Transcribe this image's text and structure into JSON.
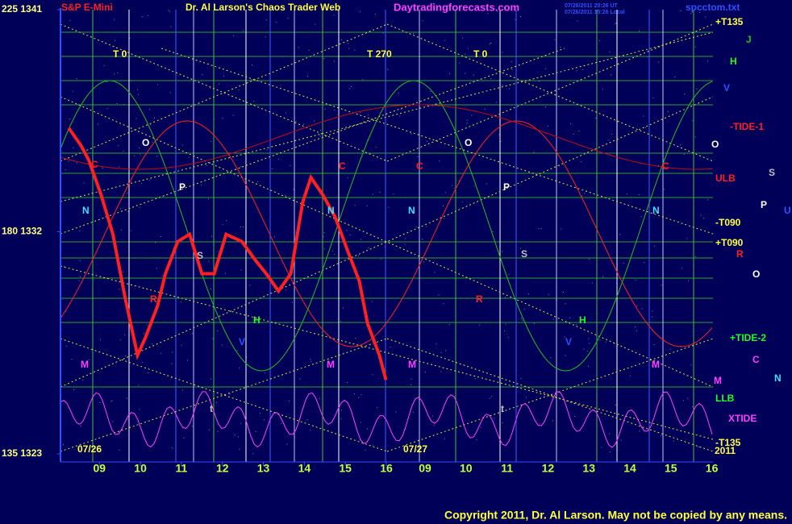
{
  "chart_data": {
    "type": "line",
    "title": "S&P E-Mini",
    "subtitle": "Dr. Al Larson's Chaos Trader Web",
    "site": "Daytradingforecasts.com",
    "stamp_ut": "07/26/2011 20:26 UT",
    "stamp_local": "07/26/2011 15:26 Local",
    "file": "spcctom.txt",
    "ylim": [
      1323,
      1341
    ],
    "yticks": [
      {
        "value": 1341,
        "label": "225 1341"
      },
      {
        "value": 1332,
        "label": "180 1332"
      },
      {
        "value": 1323,
        "label": "135 1323"
      }
    ],
    "xlim": [
      8.05,
      16
    ],
    "xticks": [
      {
        "value": 9,
        "label": "09"
      },
      10,
      11,
      12,
      13,
      14,
      15,
      16
    ],
    "day2_hour_labels": [
      "09",
      "10",
      "11",
      "12",
      "13",
      "14",
      "15",
      "16"
    ],
    "day_labels": [
      "07/26",
      "07/27"
    ],
    "year": "2011",
    "time_markers": [
      "T  0",
      "T  270",
      "T  0"
    ],
    "series": [
      {
        "name": "S&P E-Mini",
        "color": "#ff2020",
        "x": [
          8.25,
          8.55,
          8.74,
          9.04,
          9.33,
          9.63,
          9.93,
          10.12,
          10.42,
          10.61,
          10.91,
          11.2,
          11.5,
          11.8,
          12.09,
          12.48,
          12.78,
          13.07,
          13.37,
          13.67,
          13.96,
          14.16,
          14.45,
          14.75,
          15.04,
          15.34,
          15.54,
          15.83,
          15.99
        ],
        "values": [
          1336.2,
          1335.5,
          1334.9,
          1333.5,
          1331.9,
          1329.3,
          1327.0,
          1327.7,
          1329.0,
          1330.3,
          1331.6,
          1331.9,
          1330.3,
          1330.3,
          1331.9,
          1331.6,
          1330.9,
          1330.3,
          1329.6,
          1330.3,
          1333.2,
          1334.2,
          1333.5,
          1332.6,
          1331.3,
          1330.0,
          1328.3,
          1327.0,
          1326.0
        ]
      }
    ],
    "right_labels": [
      {
        "text": "+T135",
        "color": "#ffff40"
      },
      {
        "text": "J",
        "color": "#20c020"
      },
      {
        "text": "H",
        "color": "#20ff20"
      },
      {
        "text": "V",
        "color": "#3050ff"
      },
      {
        "text": "-TIDE-1",
        "color": "#ff2020"
      },
      {
        "text": "O",
        "color": "#ffffff"
      },
      {
        "text": "S",
        "color": "#c0c0c0"
      },
      {
        "text": "ULB",
        "color": "#ff2020"
      },
      {
        "text": "P",
        "color": "#ffffff"
      },
      {
        "text": "U",
        "color": "#3050ff"
      },
      {
        "text": "-T090",
        "color": "#ffff40"
      },
      {
        "text": "+T090",
        "color": "#ffff40"
      },
      {
        "text": "R",
        "color": "#ff2020"
      },
      {
        "text": "O",
        "color": "#ffffff"
      },
      {
        "text": "+TIDE-2",
        "color": "#20ff20"
      },
      {
        "text": "C",
        "color": "#ff40ff"
      },
      {
        "text": "N",
        "color": "#40e0ff"
      },
      {
        "text": "M",
        "color": "#ff40ff"
      },
      {
        "text": "LLB",
        "color": "#20ff20"
      },
      {
        "text": "XTIDE",
        "color": "#ff40ff"
      },
      {
        "text": "-T135",
        "color": "#ffff40"
      }
    ],
    "plot_labels": [
      {
        "text": "O",
        "color": "#ffffff"
      },
      {
        "text": "C",
        "color": "#ff2020"
      },
      {
        "text": "N",
        "color": "#40e0ff"
      },
      {
        "text": "P",
        "color": "#ffffff"
      },
      {
        "text": "S",
        "color": "#c0c0c0"
      },
      {
        "text": "R",
        "color": "#ff2020"
      },
      {
        "text": "H",
        "color": "#20ff20"
      },
      {
        "text": "V",
        "color": "#3050ff"
      },
      {
        "text": "M",
        "color": "#ff40ff"
      },
      {
        "text": "C",
        "color": "#ff2020"
      },
      {
        "text": "N",
        "color": "#40e0ff"
      },
      {
        "text": "M",
        "color": "#ff40ff"
      },
      {
        "text": "t",
        "color": "#c0c0c0"
      },
      {
        "text": "O",
        "color": "#ffffff"
      },
      {
        "text": "C",
        "color": "#ff2020"
      },
      {
        "text": "N",
        "color": "#40e0ff"
      },
      {
        "text": "P",
        "color": "#ffffff"
      },
      {
        "text": "S",
        "color": "#c0c0c0"
      },
      {
        "text": "R",
        "color": "#ff2020"
      },
      {
        "text": "H",
        "color": "#20ff20"
      },
      {
        "text": "V",
        "color": "#3050ff"
      },
      {
        "text": "M",
        "color": "#ff40ff"
      },
      {
        "text": "N",
        "color": "#40e0ff"
      },
      {
        "text": "C",
        "color": "#ff2020"
      },
      {
        "text": "M",
        "color": "#ff40ff"
      },
      {
        "text": "t",
        "color": "#c0c0c0"
      }
    ],
    "copyright": "Copyright 2011, Dr. Al Larson. May not be copied by any means."
  }
}
